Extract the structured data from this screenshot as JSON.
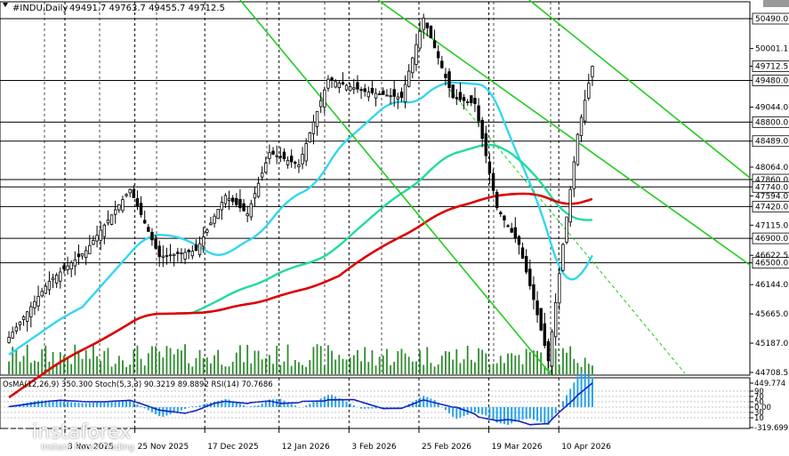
{
  "header": {
    "symbol": "#INDU,Daily",
    "ohlc": "49491.7 49763.7 49455.7 49712.5"
  },
  "chart_data": {
    "type": "candlestick",
    "price_axis": {
      "ylim": [
        44708.5,
        50490.0
      ],
      "ticks": [
        "50490.0",
        "50001.1",
        "49712.5",
        "49480.0",
        "49044.0",
        "48800.0",
        "48489.0",
        "48064.0",
        "47860.0",
        "47740.0",
        "47594.0",
        "47420.0",
        "47115.0",
        "46900.0",
        "46622.5",
        "46500.0",
        "46144.0",
        "45665.0",
        "45187.0",
        "44708.5"
      ],
      "tick_values": [
        50490,
        50001.1,
        49712.5,
        49480,
        49044,
        48800,
        48489,
        48064,
        47860,
        47740,
        47594,
        47420,
        47115,
        46900,
        46622.5,
        46500,
        46144,
        45665,
        45187,
        44708.5
      ]
    },
    "price_levels": [
      {
        "label": "50490.0",
        "value": 50490,
        "kind": "level"
      },
      {
        "label": "49712.5",
        "value": 49712.5,
        "kind": "current"
      },
      {
        "label": "49480.0",
        "value": 49480,
        "kind": "level"
      },
      {
        "label": "48800.0",
        "value": 48800,
        "kind": "level"
      },
      {
        "label": "48489.0",
        "value": 48489,
        "kind": "level"
      },
      {
        "label": "47860.0",
        "value": 47860,
        "kind": "level"
      },
      {
        "label": "47740.0",
        "value": 47740,
        "kind": "level"
      },
      {
        "label": "47420.0",
        "value": 47420,
        "kind": "level"
      },
      {
        "label": "46900.0",
        "value": 46900,
        "kind": "level"
      },
      {
        "label": "46500.0",
        "value": 46500,
        "kind": "level"
      }
    ],
    "dates": [
      "3 Nov 2025",
      "25 Nov 2025",
      "17 Dec 2025",
      "12 Jan 2026",
      "3 Feb 2026",
      "25 Feb 2026",
      "19 Mar 2026",
      "10 Apr 2026"
    ],
    "date_values": [
      64,
      80,
      96,
      113,
      129,
      145,
      161,
      177
    ],
    "oscillator": {
      "header": "OsMA(12,26,9) 350.300  Stoch(5,3,3) 90.3219 89.8892  RSI(14) 70.7686",
      "ticks": [
        "449.774",
        "90",
        "70",
        "50",
        "0.00",
        "30",
        "10",
        "-319.699"
      ]
    }
  },
  "watermark": {
    "brand": "instaforex",
    "tagline": "Instant Forex Trading"
  },
  "colors": {
    "candles": "#000000",
    "volume": "#2e8b2e",
    "ma_fast": "#33d6f0",
    "ma_mid": "#1fdc9a",
    "ma_slow": "#dd0000",
    "channel": "#22cc22",
    "osma": "#22a3ee",
    "signal": "#1020c0"
  }
}
